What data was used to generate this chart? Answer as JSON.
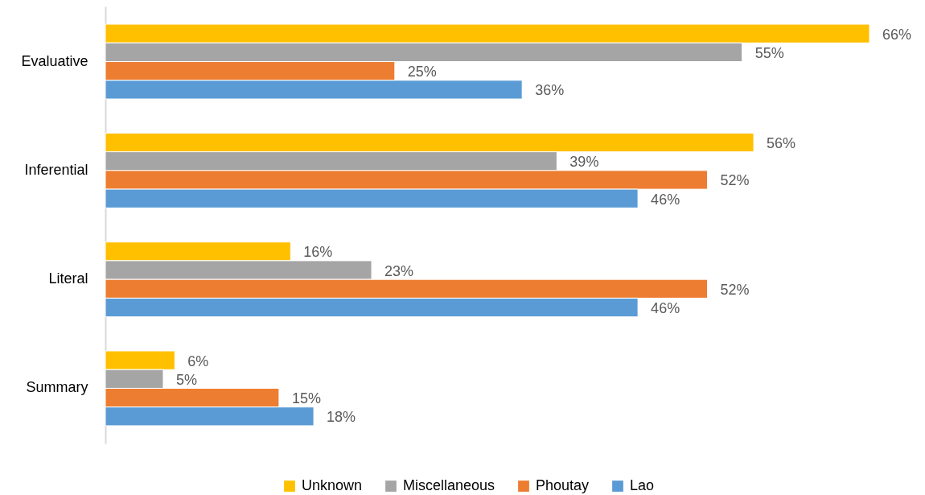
{
  "chart_data": {
    "type": "bar",
    "orientation": "horizontal",
    "categories": [
      "Evaluative",
      "Inferential",
      "Literal",
      "Summary"
    ],
    "series": [
      {
        "name": "Unknown",
        "color": "#ffc000",
        "values": [
          66,
          56,
          16,
          6
        ],
        "value_labels": [
          "66%",
          "56%",
          "16%",
          "6%"
        ]
      },
      {
        "name": "Miscellaneous",
        "color": "#a5a5a5",
        "values": [
          55,
          39,
          23,
          5
        ],
        "value_labels": [
          "55%",
          "39%",
          "23%",
          "5%"
        ]
      },
      {
        "name": "Phoutay",
        "color": "#ed7d31",
        "values": [
          25,
          52,
          52,
          15
        ],
        "value_labels": [
          "25%",
          "52%",
          "52%",
          "15%"
        ]
      },
      {
        "name": "Lao",
        "color": "#5b9bd5",
        "values": [
          36,
          46,
          46,
          18
        ],
        "value_labels": [
          "36%",
          "46%",
          "46%",
          "18%"
        ]
      }
    ],
    "tick_labels": "y",
    "legend": "bottom"
  }
}
